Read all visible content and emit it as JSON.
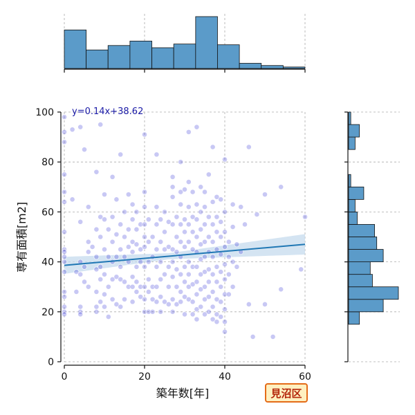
{
  "badge": {
    "label": "見沼区",
    "fill": "#fff0c0",
    "border": "#e46b17",
    "text_color": "#b4260a"
  },
  "chart_data": {
    "type": "scatter",
    "xlabel": "築年数[年]",
    "ylabel": "専有面積[m2]",
    "xlim": [
      0,
      60
    ],
    "ylim": [
      0,
      100
    ],
    "x_ticks": [
      0,
      20,
      40,
      60
    ],
    "y_ticks": [
      0,
      20,
      40,
      60,
      80,
      100
    ],
    "grid": true,
    "point_color": "#3b3bd6",
    "regression": {
      "equation_label": "y=0.14x+38.62",
      "slope": 0.14,
      "intercept": 38.62,
      "line_color": "#1f77b4",
      "ci_color": "#c6dbee"
    },
    "points": [
      [
        0,
        98
      ],
      [
        0,
        92
      ],
      [
        0,
        88
      ],
      [
        0,
        75
      ],
      [
        0,
        68
      ],
      [
        0,
        64
      ],
      [
        0,
        52
      ],
      [
        0,
        45
      ],
      [
        0,
        44
      ],
      [
        0,
        42
      ],
      [
        0,
        40
      ],
      [
        0,
        36
      ],
      [
        0,
        28
      ],
      [
        0,
        26
      ],
      [
        0,
        22
      ],
      [
        0,
        20
      ],
      [
        0,
        19
      ],
      [
        2,
        93
      ],
      [
        2,
        65
      ],
      [
        3,
        36
      ],
      [
        3,
        28
      ],
      [
        4,
        94
      ],
      [
        4,
        56
      ],
      [
        4,
        40
      ],
      [
        4,
        35
      ],
      [
        4,
        22
      ],
      [
        4,
        20
      ],
      [
        4,
        19
      ],
      [
        5,
        85
      ],
      [
        5,
        38
      ],
      [
        5,
        32
      ],
      [
        6,
        62
      ],
      [
        6,
        48
      ],
      [
        6,
        44
      ],
      [
        6,
        30
      ],
      [
        7,
        46
      ],
      [
        8,
        76
      ],
      [
        8,
        53
      ],
      [
        8,
        42
      ],
      [
        8,
        37
      ],
      [
        8,
        28
      ],
      [
        8,
        22
      ],
      [
        8,
        20
      ],
      [
        9,
        95
      ],
      [
        9,
        58
      ],
      [
        9,
        50
      ],
      [
        9,
        38
      ],
      [
        9,
        33
      ],
      [
        9,
        24
      ],
      [
        10,
        67
      ],
      [
        10,
        57
      ],
      [
        10,
        45
      ],
      [
        10,
        35
      ],
      [
        10,
        27
      ],
      [
        10,
        22
      ],
      [
        11,
        53
      ],
      [
        11,
        42
      ],
      [
        11,
        30
      ],
      [
        11,
        18
      ],
      [
        12,
        74
      ],
      [
        12,
        58
      ],
      [
        12,
        48
      ],
      [
        12,
        40
      ],
      [
        12,
        33
      ],
      [
        12,
        25
      ],
      [
        13,
        65
      ],
      [
        13,
        51
      ],
      [
        13,
        42
      ],
      [
        13,
        34
      ],
      [
        13,
        23
      ],
      [
        14,
        83
      ],
      [
        14,
        55
      ],
      [
        14,
        45
      ],
      [
        14,
        38
      ],
      [
        14,
        33
      ],
      [
        14,
        22
      ],
      [
        15,
        60
      ],
      [
        15,
        50
      ],
      [
        15,
        42
      ],
      [
        15,
        32
      ],
      [
        15,
        25
      ],
      [
        16,
        67
      ],
      [
        16,
        53
      ],
      [
        16,
        46
      ],
      [
        16,
        40
      ],
      [
        16,
        30
      ],
      [
        17,
        63
      ],
      [
        17,
        57
      ],
      [
        17,
        48
      ],
      [
        17,
        44
      ],
      [
        17,
        34
      ],
      [
        17,
        30
      ],
      [
        17,
        24
      ],
      [
        18,
        60
      ],
      [
        18,
        53
      ],
      [
        18,
        47
      ],
      [
        18,
        38
      ],
      [
        18,
        32
      ],
      [
        18,
        28
      ],
      [
        19,
        55
      ],
      [
        19,
        45
      ],
      [
        19,
        40
      ],
      [
        19,
        30
      ],
      [
        19,
        26
      ],
      [
        20,
        91
      ],
      [
        20,
        68
      ],
      [
        20,
        62
      ],
      [
        20,
        55
      ],
      [
        20,
        50
      ],
      [
        20,
        46
      ],
      [
        20,
        38
      ],
      [
        20,
        30
      ],
      [
        20,
        25
      ],
      [
        20,
        20
      ],
      [
        21,
        57
      ],
      [
        21,
        48
      ],
      [
        21,
        40
      ],
      [
        21,
        33
      ],
      [
        21,
        28
      ],
      [
        21,
        20
      ],
      [
        22,
        50
      ],
      [
        22,
        42
      ],
      [
        22,
        30
      ],
      [
        22,
        25
      ],
      [
        22,
        20
      ],
      [
        23,
        83
      ],
      [
        23,
        62
      ],
      [
        23,
        55
      ],
      [
        23,
        45
      ],
      [
        23,
        38
      ],
      [
        23,
        30
      ],
      [
        23,
        24
      ],
      [
        24,
        57
      ],
      [
        24,
        48
      ],
      [
        24,
        40
      ],
      [
        24,
        33
      ],
      [
        24,
        26
      ],
      [
        24,
        20
      ],
      [
        25,
        60
      ],
      [
        25,
        52
      ],
      [
        25,
        45
      ],
      [
        25,
        35
      ],
      [
        25,
        24
      ],
      [
        26,
        56
      ],
      [
        26,
        46
      ],
      [
        26,
        38
      ],
      [
        26,
        30
      ],
      [
        26,
        23
      ],
      [
        27,
        74
      ],
      [
        27,
        70
      ],
      [
        27,
        66
      ],
      [
        27,
        55
      ],
      [
        27,
        45
      ],
      [
        27,
        40
      ],
      [
        27,
        34
      ],
      [
        27,
        25
      ],
      [
        27,
        20
      ],
      [
        28,
        58
      ],
      [
        28,
        50
      ],
      [
        28,
        44
      ],
      [
        28,
        37
      ],
      [
        28,
        30
      ],
      [
        28,
        23
      ],
      [
        29,
        80
      ],
      [
        29,
        68
      ],
      [
        29,
        63
      ],
      [
        29,
        55
      ],
      [
        29,
        48
      ],
      [
        29,
        42
      ],
      [
        29,
        35
      ],
      [
        29,
        28
      ],
      [
        29,
        24
      ],
      [
        30,
        69
      ],
      [
        30,
        57
      ],
      [
        30,
        52
      ],
      [
        30,
        46
      ],
      [
        30,
        38
      ],
      [
        30,
        32
      ],
      [
        30,
        26
      ],
      [
        30,
        19
      ],
      [
        31,
        92
      ],
      [
        31,
        72
      ],
      [
        31,
        62
      ],
      [
        31,
        55
      ],
      [
        31,
        48
      ],
      [
        31,
        40
      ],
      [
        31,
        35
      ],
      [
        31,
        30
      ],
      [
        31,
        25
      ],
      [
        32,
        68
      ],
      [
        32,
        58
      ],
      [
        32,
        52
      ],
      [
        32,
        45
      ],
      [
        32,
        38
      ],
      [
        32,
        31
      ],
      [
        32,
        24
      ],
      [
        32,
        19
      ],
      [
        33,
        94
      ],
      [
        33,
        63
      ],
      [
        33,
        57
      ],
      [
        33,
        50
      ],
      [
        33,
        44
      ],
      [
        33,
        38
      ],
      [
        33,
        32
      ],
      [
        33,
        27
      ],
      [
        33,
        21
      ],
      [
        33,
        17
      ],
      [
        34,
        70
      ],
      [
        34,
        60
      ],
      [
        34,
        53
      ],
      [
        34,
        47
      ],
      [
        34,
        41
      ],
      [
        34,
        35
      ],
      [
        34,
        29
      ],
      [
        34,
        22
      ],
      [
        35,
        68
      ],
      [
        35,
        62
      ],
      [
        35,
        55
      ],
      [
        35,
        48
      ],
      [
        35,
        42
      ],
      [
        35,
        36
      ],
      [
        35,
        30
      ],
      [
        35,
        25
      ],
      [
        35,
        19
      ],
      [
        36,
        75
      ],
      [
        36,
        58
      ],
      [
        36,
        50
      ],
      [
        36,
        44
      ],
      [
        36,
        37
      ],
      [
        36,
        32
      ],
      [
        36,
        26
      ],
      [
        36,
        20
      ],
      [
        37,
        86
      ],
      [
        37,
        64
      ],
      [
        37,
        55
      ],
      [
        37,
        48
      ],
      [
        37,
        42
      ],
      [
        37,
        35
      ],
      [
        37,
        28
      ],
      [
        37,
        22
      ],
      [
        37,
        17
      ],
      [
        38,
        66
      ],
      [
        38,
        58
      ],
      [
        38,
        52
      ],
      [
        38,
        45
      ],
      [
        38,
        38
      ],
      [
        38,
        32
      ],
      [
        38,
        25
      ],
      [
        38,
        19
      ],
      [
        38,
        16
      ],
      [
        39,
        65
      ],
      [
        39,
        56
      ],
      [
        39,
        50
      ],
      [
        39,
        43
      ],
      [
        39,
        36
      ],
      [
        39,
        30
      ],
      [
        39,
        24
      ],
      [
        39,
        18
      ],
      [
        40,
        81
      ],
      [
        40,
        60
      ],
      [
        40,
        52
      ],
      [
        40,
        46
      ],
      [
        40,
        39
      ],
      [
        40,
        33
      ],
      [
        40,
        27
      ],
      [
        40,
        21
      ],
      [
        40,
        16
      ],
      [
        40,
        12
      ],
      [
        41,
        48
      ],
      [
        41,
        42
      ],
      [
        41,
        35
      ],
      [
        41,
        27
      ],
      [
        42,
        63
      ],
      [
        42,
        54
      ],
      [
        42,
        40
      ],
      [
        42,
        30
      ],
      [
        43,
        47
      ],
      [
        43,
        38
      ],
      [
        44,
        62
      ],
      [
        44,
        44
      ],
      [
        45,
        55
      ],
      [
        46,
        86
      ],
      [
        46,
        23
      ],
      [
        47,
        10
      ],
      [
        48,
        59
      ],
      [
        50,
        67
      ],
      [
        50,
        23
      ],
      [
        52,
        10
      ],
      [
        54,
        70
      ],
      [
        54,
        29
      ],
      [
        59,
        37
      ],
      [
        60,
        58
      ]
    ],
    "x_histogram": {
      "bin_edges": [
        0,
        5.45,
        10.9,
        16.36,
        21.82,
        27.27,
        32.73,
        38.18,
        43.64,
        49.09,
        54.55,
        60
      ],
      "counts": [
        52,
        25,
        31,
        37,
        28,
        33,
        70,
        32,
        7,
        4,
        2
      ]
    },
    "y_histogram": {
      "bin_edges": [
        0,
        5,
        10,
        15,
        20,
        25,
        30,
        35,
        40,
        45,
        50,
        55,
        60,
        65,
        70,
        75,
        80,
        85,
        90,
        95,
        100
      ],
      "counts": [
        0,
        0,
        0,
        5,
        16,
        23,
        11,
        10,
        16,
        13,
        12,
        4,
        3,
        7,
        1,
        0,
        0,
        3,
        5,
        1
      ]
    }
  }
}
